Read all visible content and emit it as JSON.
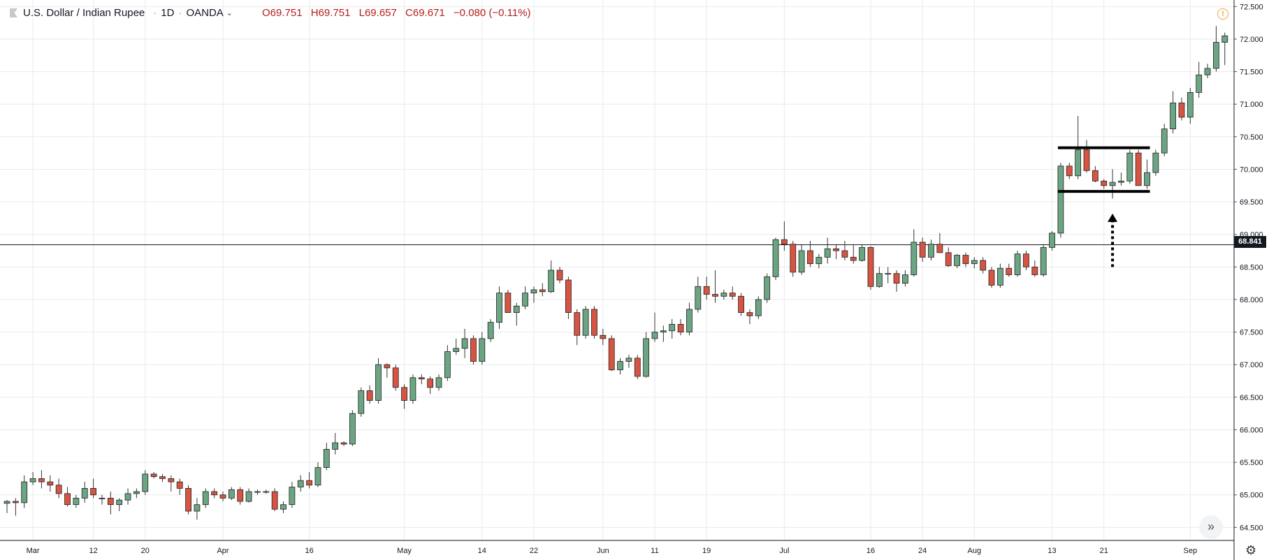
{
  "legend": {
    "symbol": "U.S. Dollar / Indian Rupee",
    "interval": "1D",
    "source": "OANDA",
    "open": "O69.751",
    "high": "H69.751",
    "low": "L69.657",
    "close": "C69.671",
    "change": "−0.080 (−0.11%)"
  },
  "current_price_label": "68.841",
  "icons": {
    "alert": "alert-icon",
    "scroll": "double-chevron-right-icon",
    "settings": "gear-icon"
  },
  "colors": {
    "up": "#6ba583",
    "down": "#d75442",
    "grid": "#e8eaee",
    "box": "#000000"
  },
  "chart_data": {
    "type": "candlestick",
    "ylim": [
      64.3,
      72.6
    ],
    "y_ticks": [
      "64.500",
      "65.000",
      "65.500",
      "66.000",
      "66.500",
      "67.000",
      "67.500",
      "68.000",
      "68.500",
      "69.000",
      "69.500",
      "70.000",
      "70.500",
      "71.000",
      "71.500",
      "72.000",
      "72.500"
    ],
    "x_tick_labels": [
      {
        "label": "Mar",
        "index": 3
      },
      {
        "label": "12",
        "index": 10
      },
      {
        "label": "20",
        "index": 16
      },
      {
        "label": "Apr",
        "index": 25
      },
      {
        "label": "16",
        "index": 35
      },
      {
        "label": "May",
        "index": 46
      },
      {
        "label": "14",
        "index": 55
      },
      {
        "label": "22",
        "index": 61
      },
      {
        "label": "Jun",
        "index": 69
      },
      {
        "label": "11",
        "index": 75
      },
      {
        "label": "19",
        "index": 81
      },
      {
        "label": "Jul",
        "index": 90
      },
      {
        "label": "16",
        "index": 100
      },
      {
        "label": "24",
        "index": 106
      },
      {
        "label": "Aug",
        "index": 112
      },
      {
        "label": "13",
        "index": 121
      },
      {
        "label": "21",
        "index": 127
      },
      {
        "label": "Sep",
        "index": 137
      }
    ],
    "horizontal_line": 68.841,
    "range_box": {
      "start_index": 122,
      "end_index": 132,
      "top": 70.33,
      "bottom": 69.66
    },
    "arrow": {
      "index": 128,
      "from": 68.5,
      "to": 69.32
    },
    "candles": [
      [
        64.87,
        64.92,
        64.72,
        64.9
      ],
      [
        64.9,
        64.95,
        64.68,
        64.88
      ],
      [
        64.88,
        65.3,
        64.8,
        65.2
      ],
      [
        65.2,
        65.35,
        65.15,
        65.25
      ],
      [
        65.25,
        65.38,
        65.1,
        65.2
      ],
      [
        65.2,
        65.3,
        65.05,
        65.15
      ],
      [
        65.15,
        65.25,
        64.95,
        65.02
      ],
      [
        65.02,
        65.12,
        64.82,
        64.85
      ],
      [
        64.85,
        65.0,
        64.8,
        64.95
      ],
      [
        64.95,
        65.2,
        64.88,
        65.1
      ],
      [
        65.1,
        65.25,
        64.95,
        65.0
      ],
      [
        64.95,
        65.0,
        64.85,
        64.95
      ],
      [
        64.95,
        65.05,
        64.7,
        64.85
      ],
      [
        64.85,
        64.95,
        64.75,
        64.92
      ],
      [
        64.92,
        65.1,
        64.85,
        65.02
      ],
      [
        65.02,
        65.1,
        64.95,
        65.05
      ],
      [
        65.05,
        65.38,
        65.0,
        65.32
      ],
      [
        65.32,
        65.35,
        65.25,
        65.28
      ],
      [
        65.28,
        65.32,
        65.2,
        65.25
      ],
      [
        65.25,
        65.3,
        65.05,
        65.2
      ],
      [
        65.2,
        65.25,
        65.0,
        65.1
      ],
      [
        65.1,
        65.15,
        64.7,
        64.75
      ],
      [
        64.75,
        64.95,
        64.62,
        64.85
      ],
      [
        64.85,
        65.1,
        64.8,
        65.05
      ],
      [
        65.05,
        65.1,
        64.95,
        65.0
      ],
      [
        65.0,
        65.05,
        64.9,
        64.95
      ],
      [
        64.95,
        65.12,
        64.92,
        65.08
      ],
      [
        65.08,
        65.12,
        64.85,
        64.9
      ],
      [
        64.9,
        65.1,
        64.88,
        65.05
      ],
      [
        65.05,
        65.08,
        65.0,
        65.05
      ],
      [
        65.05,
        65.08,
        65.02,
        65.05
      ],
      [
        65.05,
        65.1,
        64.75,
        64.78
      ],
      [
        64.78,
        64.9,
        64.72,
        64.85
      ],
      [
        64.85,
        65.2,
        64.8,
        65.12
      ],
      [
        65.12,
        65.3,
        65.05,
        65.22
      ],
      [
        65.22,
        65.35,
        65.1,
        65.15
      ],
      [
        65.15,
        65.5,
        65.12,
        65.42
      ],
      [
        65.42,
        65.8,
        65.38,
        65.7
      ],
      [
        65.7,
        65.95,
        65.62,
        65.8
      ],
      [
        65.8,
        65.82,
        65.75,
        65.78
      ],
      [
        65.78,
        66.3,
        65.75,
        66.25
      ],
      [
        66.25,
        66.65,
        66.2,
        66.6
      ],
      [
        66.6,
        66.68,
        66.4,
        66.45
      ],
      [
        66.45,
        67.1,
        66.4,
        67.0
      ],
      [
        67.0,
        67.02,
        66.8,
        66.95
      ],
      [
        66.95,
        67.0,
        66.6,
        66.65
      ],
      [
        66.65,
        66.7,
        66.32,
        66.45
      ],
      [
        66.45,
        66.85,
        66.4,
        66.8
      ],
      [
        66.8,
        66.85,
        66.7,
        66.78
      ],
      [
        66.78,
        66.82,
        66.55,
        66.65
      ],
      [
        66.65,
        66.85,
        66.6,
        66.8
      ],
      [
        66.8,
        67.3,
        66.75,
        67.2
      ],
      [
        67.2,
        67.4,
        67.15,
        67.25
      ],
      [
        67.25,
        67.55,
        67.1,
        67.4
      ],
      [
        67.4,
        67.45,
        67.0,
        67.05
      ],
      [
        67.05,
        67.5,
        67.0,
        67.4
      ],
      [
        67.4,
        67.7,
        67.35,
        67.65
      ],
      [
        67.65,
        68.2,
        67.55,
        68.1
      ],
      [
        68.1,
        68.15,
        67.8,
        67.8
      ],
      [
        67.8,
        67.95,
        67.6,
        67.9
      ],
      [
        67.9,
        68.2,
        67.85,
        68.1
      ],
      [
        68.1,
        68.2,
        67.95,
        68.15
      ],
      [
        68.15,
        68.25,
        68.05,
        68.12
      ],
      [
        68.12,
        68.6,
        68.1,
        68.45
      ],
      [
        68.45,
        68.5,
        68.25,
        68.3
      ],
      [
        68.3,
        68.35,
        67.7,
        67.8
      ],
      [
        67.8,
        67.85,
        67.3,
        67.45
      ],
      [
        67.45,
        67.9,
        67.4,
        67.85
      ],
      [
        67.85,
        67.9,
        67.4,
        67.45
      ],
      [
        67.45,
        67.55,
        67.3,
        67.4
      ],
      [
        67.4,
        67.45,
        66.9,
        66.92
      ],
      [
        66.92,
        67.1,
        66.85,
        67.05
      ],
      [
        67.05,
        67.15,
        66.95,
        67.1
      ],
      [
        67.1,
        67.15,
        66.78,
        66.82
      ],
      [
        66.82,
        67.5,
        66.8,
        67.4
      ],
      [
        67.4,
        67.8,
        67.35,
        67.5
      ],
      [
        67.5,
        67.6,
        67.35,
        67.52
      ],
      [
        67.52,
        67.7,
        67.4,
        67.62
      ],
      [
        67.62,
        67.7,
        67.45,
        67.5
      ],
      [
        67.5,
        67.95,
        67.45,
        67.85
      ],
      [
        67.85,
        68.35,
        67.8,
        68.2
      ],
      [
        68.2,
        68.35,
        68.0,
        68.08
      ],
      [
        68.08,
        68.45,
        67.95,
        68.05
      ],
      [
        68.05,
        68.15,
        68.0,
        68.1
      ],
      [
        68.1,
        68.2,
        68.0,
        68.05
      ],
      [
        68.05,
        68.1,
        67.75,
        67.8
      ],
      [
        67.8,
        67.85,
        67.62,
        67.75
      ],
      [
        67.75,
        68.05,
        67.7,
        68.0
      ],
      [
        68.0,
        68.4,
        67.95,
        68.35
      ],
      [
        68.35,
        68.95,
        68.3,
        68.92
      ],
      [
        68.92,
        69.2,
        68.75,
        68.85
      ],
      [
        68.85,
        68.9,
        68.35,
        68.42
      ],
      [
        68.42,
        68.85,
        68.38,
        68.75
      ],
      [
        68.75,
        68.9,
        68.5,
        68.55
      ],
      [
        68.55,
        68.7,
        68.48,
        68.65
      ],
      [
        68.65,
        68.95,
        68.55,
        68.78
      ],
      [
        68.78,
        68.85,
        68.62,
        68.75
      ],
      [
        68.75,
        68.9,
        68.6,
        68.65
      ],
      [
        68.65,
        68.85,
        68.55,
        68.6
      ],
      [
        68.6,
        68.85,
        68.58,
        68.8
      ],
      [
        68.8,
        68.82,
        68.15,
        68.2
      ],
      [
        68.2,
        68.5,
        68.18,
        68.4
      ],
      [
        68.4,
        68.5,
        68.25,
        68.4
      ],
      [
        68.4,
        68.45,
        68.12,
        68.25
      ],
      [
        68.25,
        68.45,
        68.2,
        68.38
      ],
      [
        68.38,
        69.08,
        68.35,
        68.88
      ],
      [
        68.88,
        68.95,
        68.58,
        68.65
      ],
      [
        68.65,
        68.92,
        68.6,
        68.85
      ],
      [
        68.85,
        69.02,
        68.72,
        68.72
      ],
      [
        68.72,
        68.8,
        68.5,
        68.52
      ],
      [
        68.52,
        68.7,
        68.48,
        68.68
      ],
      [
        68.68,
        68.72,
        68.5,
        68.55
      ],
      [
        68.55,
        68.65,
        68.48,
        68.6
      ],
      [
        68.6,
        68.65,
        68.4,
        68.45
      ],
      [
        68.45,
        68.5,
        68.18,
        68.22
      ],
      [
        68.22,
        68.55,
        68.18,
        68.48
      ],
      [
        68.48,
        68.55,
        68.35,
        68.38
      ],
      [
        68.38,
        68.75,
        68.35,
        68.7
      ],
      [
        68.7,
        68.75,
        68.45,
        68.5
      ],
      [
        68.5,
        68.6,
        68.35,
        68.38
      ],
      [
        68.38,
        68.85,
        68.35,
        68.8
      ],
      [
        68.8,
        69.05,
        68.75,
        69.02
      ],
      [
        69.02,
        70.1,
        68.95,
        70.05
      ],
      [
        70.05,
        70.1,
        69.85,
        69.9
      ],
      [
        69.9,
        70.82,
        69.85,
        70.3
      ],
      [
        70.3,
        70.45,
        69.95,
        69.98
      ],
      [
        69.98,
        70.05,
        69.8,
        69.82
      ],
      [
        69.82,
        69.85,
        69.7,
        69.75
      ],
      [
        69.75,
        70.0,
        69.55,
        69.8
      ],
      [
        69.8,
        69.95,
        69.75,
        69.82
      ],
      [
        69.82,
        70.3,
        69.78,
        70.25
      ],
      [
        70.25,
        70.3,
        69.75,
        69.75
      ],
      [
        69.75,
        70.15,
        69.7,
        69.95
      ],
      [
        69.95,
        70.3,
        69.9,
        70.25
      ],
      [
        70.25,
        70.7,
        70.2,
        70.62
      ],
      [
        70.62,
        71.2,
        70.55,
        71.02
      ],
      [
        71.02,
        71.1,
        70.75,
        70.8
      ],
      [
        70.8,
        71.25,
        70.7,
        71.18
      ],
      [
        71.18,
        71.65,
        71.1,
        71.45
      ],
      [
        71.45,
        71.62,
        71.4,
        71.55
      ],
      [
        71.55,
        72.2,
        71.5,
        71.95
      ],
      [
        71.95,
        72.1,
        71.6,
        72.05
      ]
    ]
  }
}
